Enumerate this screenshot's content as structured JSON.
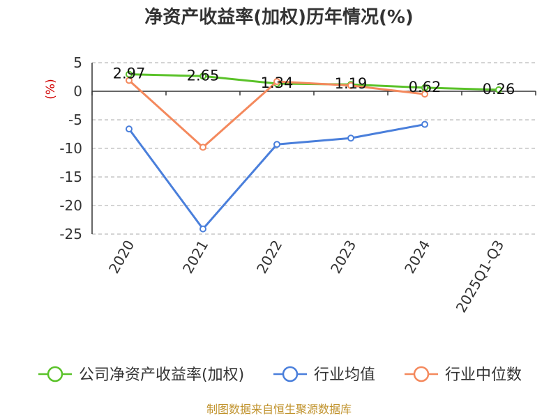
{
  "chart_data": {
    "type": "line",
    "title": "净资产收益率(加权)历年情况(%)",
    "ylabel": "(%)",
    "categories": [
      "2020",
      "2021",
      "2022",
      "2023",
      "2024",
      "2025Q1-Q3"
    ],
    "yticks": [
      5,
      0,
      -5,
      -10,
      -15,
      -20,
      -25
    ],
    "ylim": [
      -25,
      5
    ],
    "grid": true,
    "legend_position": "bottom",
    "series": [
      {
        "name": "公司净资产收益率(加权)",
        "color": "#5ac229",
        "values": [
          2.97,
          2.65,
          1.34,
          1.19,
          0.62,
          0.26
        ],
        "labels": [
          "2.97",
          "2.65",
          "1.34",
          "1.19",
          "0.62",
          "0.26"
        ]
      },
      {
        "name": "行业均值",
        "color": "#4a7fdb",
        "values": [
          -6.6,
          -24.1,
          -9.3,
          -8.2,
          -5.8,
          null
        ]
      },
      {
        "name": "行业中位数",
        "color": "#f4895d",
        "values": [
          1.9,
          -9.8,
          1.7,
          1.0,
          -0.5,
          null
        ]
      }
    ]
  },
  "source_note": "制图数据来自恒生聚源数据库"
}
